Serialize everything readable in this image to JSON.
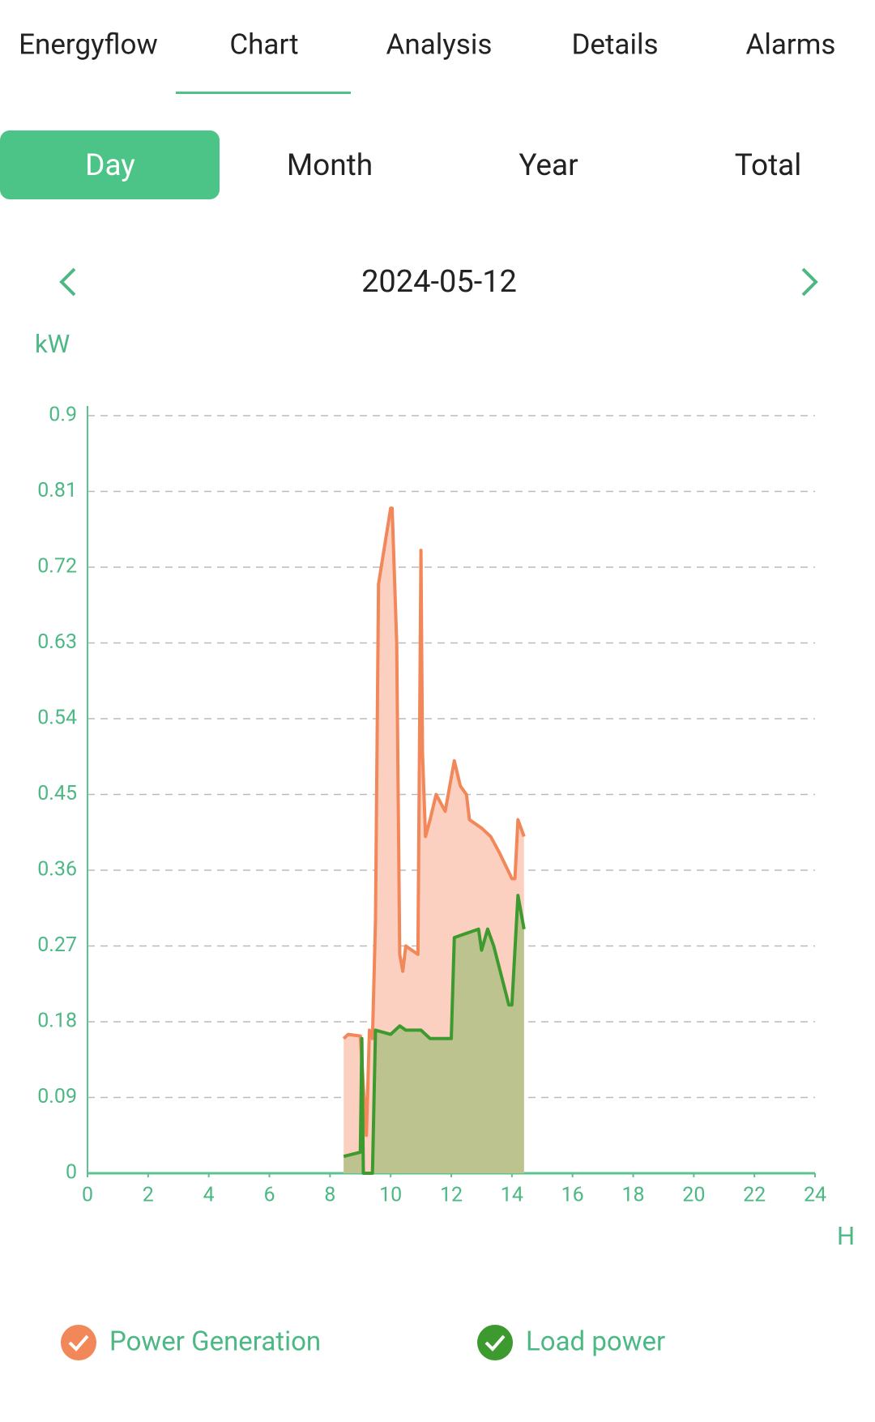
{
  "tabs": [
    "Energyflow",
    "Chart",
    "Analysis",
    "Details",
    "Alarms"
  ],
  "active_tab": 1,
  "periods": [
    "Day",
    "Month",
    "Year",
    "Total"
  ],
  "active_period": 0,
  "date": "2024-05-12",
  "chart_data": {
    "type": "area",
    "y_unit": "kW",
    "x_unit": "H",
    "xlim": [
      0,
      24
    ],
    "xticks": [
      0,
      2,
      4,
      6,
      8,
      10,
      12,
      14,
      16,
      18,
      20,
      22,
      24
    ],
    "ylim": [
      0,
      0.9
    ],
    "yticks": [
      0,
      0.09,
      0.18,
      0.27,
      0.36,
      0.45,
      0.54,
      0.63,
      0.72,
      0.81,
      0.9
    ],
    "grid": true,
    "series": [
      {
        "name": "Power Generation",
        "color": "#f2875a",
        "fill": "#fbd0c0",
        "x": [
          8.45,
          8.6,
          9.0,
          9.2,
          9.3,
          9.4,
          9.5,
          9.6,
          10.0,
          10.05,
          10.2,
          10.3,
          10.4,
          10.5,
          10.9,
          11.0,
          11.05,
          11.15,
          11.3,
          11.5,
          11.8,
          12.1,
          12.3,
          12.5,
          12.6,
          13.0,
          13.3,
          13.6,
          14.0,
          14.1,
          14.2,
          14.4
        ],
        "values": [
          0.16,
          0.165,
          0.163,
          0.045,
          0.17,
          0.16,
          0.3,
          0.7,
          0.79,
          0.79,
          0.63,
          0.26,
          0.24,
          0.27,
          0.26,
          0.74,
          0.5,
          0.4,
          0.42,
          0.45,
          0.43,
          0.49,
          0.46,
          0.45,
          0.42,
          0.41,
          0.4,
          0.38,
          0.35,
          0.35,
          0.42,
          0.4
        ]
      },
      {
        "name": "Load power",
        "color": "#3d9a2e",
        "fill": "#bcc38f",
        "x": [
          8.45,
          9.0,
          9.05,
          9.1,
          9.4,
          9.5,
          10.0,
          10.3,
          10.5,
          11.0,
          11.3,
          12.0,
          12.1,
          12.5,
          12.9,
          13.0,
          13.2,
          13.4,
          13.9,
          14.0,
          14.2,
          14.4
        ],
        "values": [
          0.02,
          0.025,
          0.16,
          0.0,
          0.0,
          0.17,
          0.165,
          0.175,
          0.17,
          0.17,
          0.16,
          0.16,
          0.28,
          0.285,
          0.29,
          0.265,
          0.29,
          0.27,
          0.2,
          0.2,
          0.33,
          0.29
        ]
      }
    ]
  }
}
